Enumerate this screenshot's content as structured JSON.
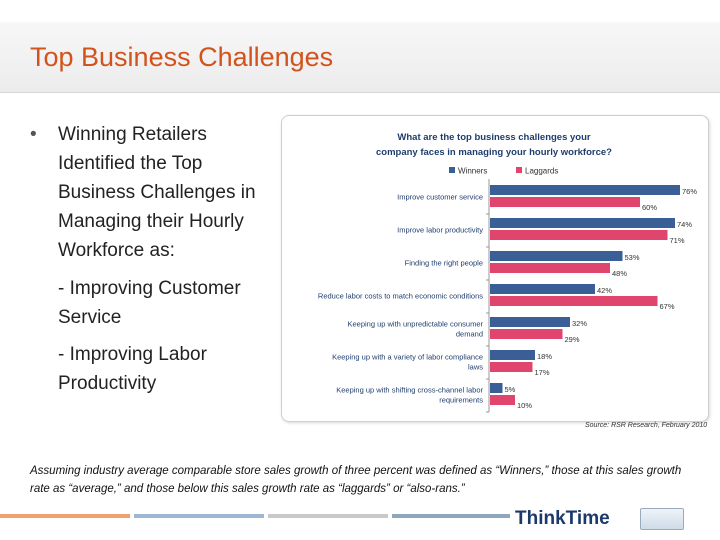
{
  "slide": {
    "title": "Top Business Challenges",
    "bullet_text": "Winning Retailers Identified the Top Business Challenges in Managing their Hourly Workforce as:",
    "sub1": "- Improving Customer Service",
    "sub2": "- Improving Labor Productivity",
    "note": "Assuming industry average comparable store sales growth of three percent was defined as “Winners,” those at this sales growth rate as “average,” and those below this sales growth rate as “laggards” or “also-rans.”",
    "source": "Source: RSR Research, February 2010",
    "logo_text": "ThinkTime",
    "colors": {
      "title": "#d2531b",
      "winners": "#3a5f96",
      "laggards": "#e0456d"
    }
  },
  "chart_data": {
    "type": "bar",
    "orientation": "horizontal",
    "title": "What are the top business challenges your company faces in managing your hourly workforce?",
    "categories": [
      "Improve customer service",
      "Improve labor productivity",
      "Finding the right people",
      "Reduce labor costs to match economic conditions",
      "Keeping up with unpredictable consumer demand",
      "Keeping up with a variety of labor compliance laws",
      "Keeping up with shifting cross-channel labor requirements"
    ],
    "series": [
      {
        "name": "Winners",
        "color": "#3a5f96",
        "values": [
          76,
          74,
          53,
          42,
          32,
          18,
          5
        ]
      },
      {
        "name": "Laggards",
        "color": "#e0456d",
        "values": [
          60,
          71,
          48,
          67,
          29,
          17,
          10
        ]
      }
    ],
    "xlim": [
      0,
      80
    ],
    "legend_position": "top",
    "value_suffix": "%",
    "grid": false
  }
}
